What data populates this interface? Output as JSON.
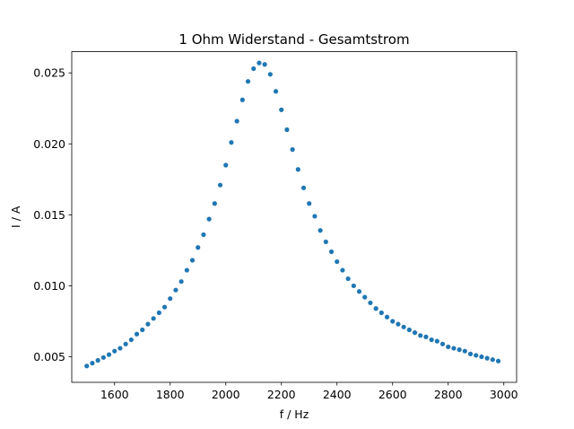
{
  "chart_data": {
    "type": "scatter",
    "title": "1 Ohm Widerstand - Gesamtstrom",
    "xlabel": "f / Hz",
    "ylabel": "I / A",
    "xlim": [
      1446,
      3046
    ],
    "ylim": [
      0.0032,
      0.0265
    ],
    "xticks": [
      1600,
      1800,
      2000,
      2200,
      2400,
      2600,
      2800,
      3000
    ],
    "xtick_labels": [
      "1600",
      "1800",
      "2000",
      "2200",
      "2400",
      "2600",
      "2800",
      "3000"
    ],
    "yticks": [
      0.005,
      0.01,
      0.015,
      0.02,
      0.025
    ],
    "ytick_labels": [
      "0.005",
      "0.010",
      "0.015",
      "0.020",
      "0.025"
    ],
    "grid": false,
    "marker_color": "#1f77b4",
    "series": [
      {
        "x": [
          1500,
          1520,
          1540,
          1560,
          1580,
          1600,
          1620,
          1640,
          1660,
          1680,
          1700,
          1720,
          1740,
          1760,
          1780,
          1800,
          1820,
          1840,
          1860,
          1880,
          1900,
          1920,
          1940,
          1960,
          1980,
          2000,
          2020,
          2040,
          2060,
          2080,
          2100,
          2120,
          2140,
          2160,
          2180,
          2200,
          2220,
          2240,
          2260,
          2280,
          2300,
          2320,
          2340,
          2360,
          2380,
          2400,
          2420,
          2440,
          2460,
          2480,
          2500,
          2520,
          2540,
          2560,
          2580,
          2600,
          2620,
          2640,
          2660,
          2680,
          2700,
          2720,
          2740,
          2760,
          2780,
          2800,
          2820,
          2840,
          2860,
          2880,
          2900,
          2920,
          2940,
          2960,
          2980
        ],
        "y": [
          0.00435,
          0.00455,
          0.00475,
          0.00495,
          0.00515,
          0.0054,
          0.0056,
          0.0059,
          0.0062,
          0.0066,
          0.0069,
          0.0073,
          0.0077,
          0.0081,
          0.0085,
          0.0091,
          0.0097,
          0.0103,
          0.0111,
          0.0118,
          0.0127,
          0.0136,
          0.0147,
          0.0158,
          0.0171,
          0.0185,
          0.0201,
          0.0216,
          0.0231,
          0.0244,
          0.0253,
          0.0257,
          0.0256,
          0.0249,
          0.0237,
          0.0224,
          0.021,
          0.0196,
          0.0182,
          0.0169,
          0.0158,
          0.0149,
          0.0139,
          0.0131,
          0.0124,
          0.0117,
          0.0111,
          0.0105,
          0.01,
          0.0096,
          0.0092,
          0.0088,
          0.0084,
          0.0081,
          0.0078,
          0.0075,
          0.0073,
          0.0071,
          0.0069,
          0.0067,
          0.0065,
          0.0064,
          0.0062,
          0.0061,
          0.0059,
          0.0057,
          0.0056,
          0.0055,
          0.0054,
          0.0052,
          0.0051,
          0.005,
          0.0049,
          0.0048,
          0.0047
        ]
      }
    ]
  }
}
